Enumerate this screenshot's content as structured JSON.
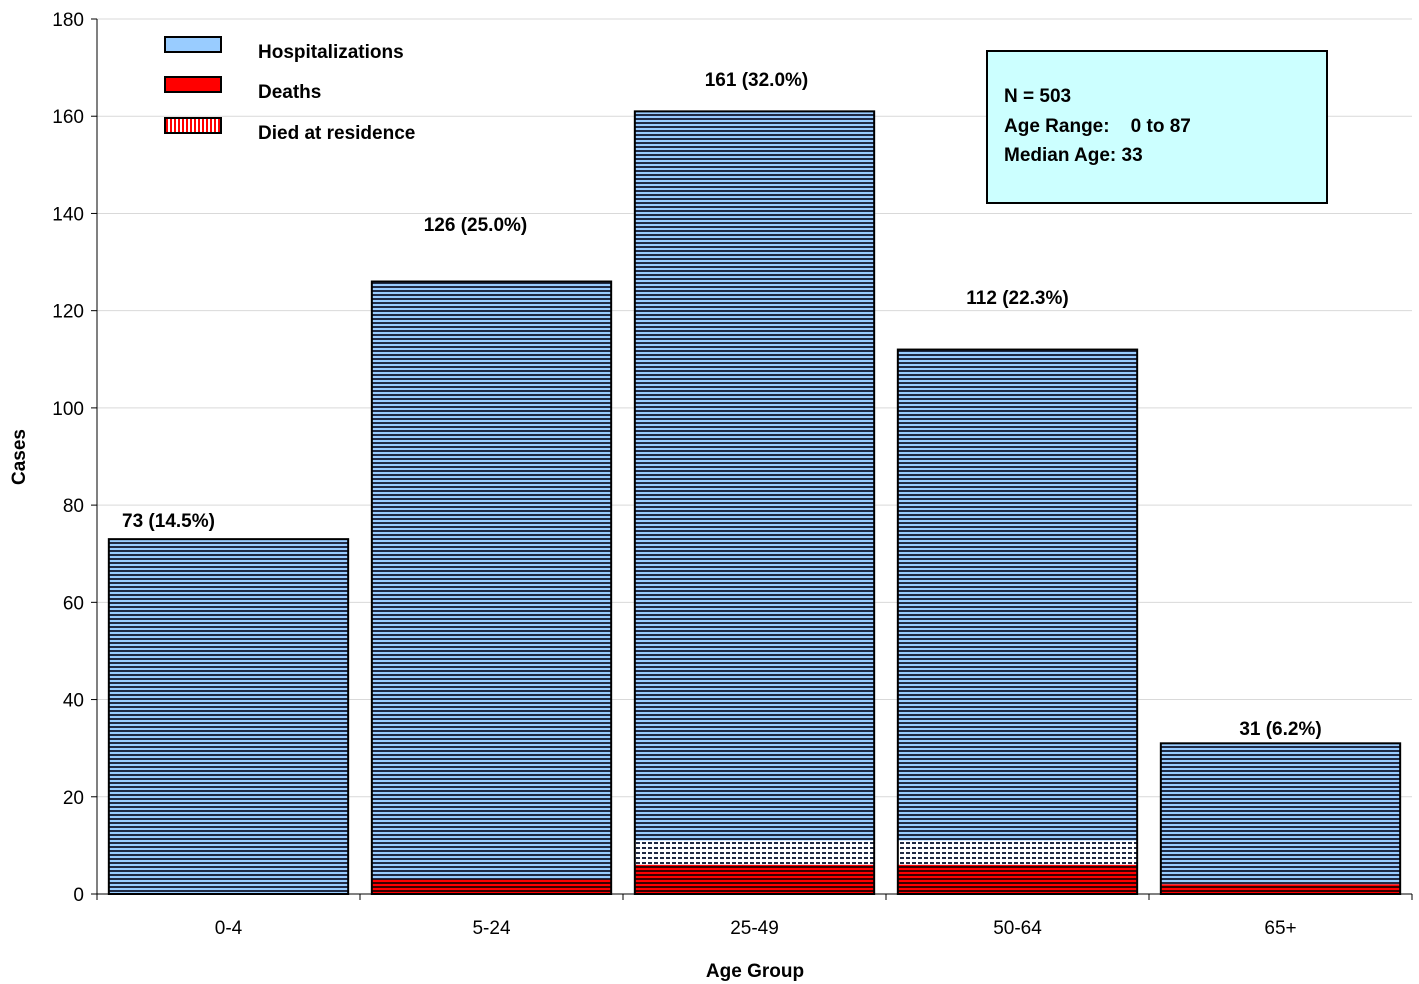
{
  "chart_data": {
    "type": "bar",
    "stacked": true,
    "xlabel": "Age Group",
    "ylabel": "Cases",
    "ylim": [
      0,
      180
    ],
    "yticks": [
      0,
      20,
      40,
      60,
      80,
      100,
      120,
      140,
      160,
      180
    ],
    "grid": true,
    "legend_position": "top-left",
    "categories": [
      "0-4",
      "5-24",
      "25-49",
      "50-64",
      "65+"
    ],
    "totals": [
      73,
      126,
      161,
      112,
      31
    ],
    "data_labels": [
      "73 (14.5%)",
      "126 (25.0%)",
      "161 (32.0%)",
      "112 (22.3%)",
      "31 (6.2%)"
    ],
    "series": [
      {
        "name": "Hospitalizations",
        "color": "#99ccff",
        "values": [
          73,
          123,
          150,
          101,
          29
        ]
      },
      {
        "name": "Deaths",
        "color": "#ff0000",
        "values": [
          0,
          3,
          6,
          6,
          2
        ]
      },
      {
        "name": "Died at residence",
        "color": "#ffffff",
        "values": [
          0,
          0,
          5,
          5,
          0
        ]
      }
    ],
    "annotation": {
      "lines": [
        "N = 503",
        "Age Range:    0 to 87",
        "Median Age: 33"
      ],
      "background": "#ccffff"
    }
  }
}
